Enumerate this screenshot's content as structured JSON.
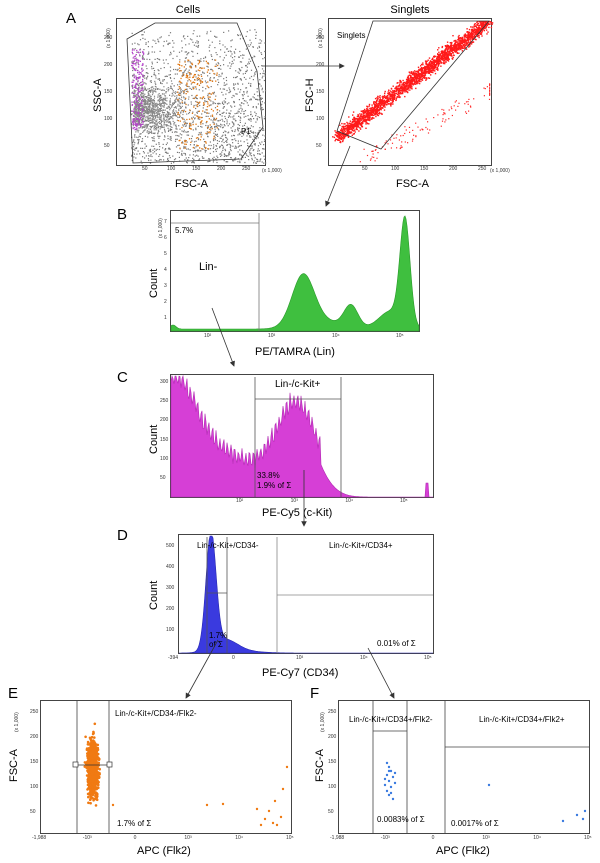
{
  "panels": {
    "A": {
      "letter": "A",
      "cells": {
        "title": "Cells",
        "xlabel": "FSC-A",
        "ylabel": "SSC-A",
        "x_scale": "(x 1,000)",
        "y_scale": "(x 1,000)",
        "x_ticks": [
          "50",
          "100",
          "150",
          "200",
          "250"
        ],
        "y_ticks": [
          "50",
          "100",
          "150",
          "200",
          "250"
        ],
        "gate": "P1"
      },
      "singlets": {
        "title": "Singlets",
        "xlabel": "FSC-A",
        "ylabel": "FSC-H",
        "x_scale": "(x 1,000)",
        "y_scale": "(x 1,000)",
        "x_ticks": [
          "50",
          "100",
          "150",
          "200",
          "250"
        ],
        "y_ticks": [
          "50",
          "100",
          "150",
          "200",
          "250"
        ],
        "gate": "Singlets"
      }
    },
    "B": {
      "letter": "B",
      "xlabel": "PE/TAMRA (Lin)",
      "ylabel": "Count",
      "y_scale": "(x 1,000)",
      "y_ticks": [
        "1",
        "2",
        "3",
        "4",
        "5",
        "6",
        "7"
      ],
      "x_ticks": [
        "10²",
        "10³",
        "10⁴",
        "10⁵"
      ],
      "gate": "Lin-",
      "pct": "5.7%",
      "color": "#3fbf3f"
    },
    "C": {
      "letter": "C",
      "xlabel": "PE-Cy5 (c-Kit)",
      "ylabel": "Count",
      "y_ticks": [
        "50",
        "100",
        "150",
        "200",
        "250",
        "300"
      ],
      "x_ticks": [
        "10²",
        "10³",
        "10⁴",
        "10⁵"
      ],
      "gate": "Lin-/c-Kit+",
      "pct": "33.8%",
      "of_total": "1.9% of Σ",
      "color": "#d63fd6"
    },
    "D": {
      "letter": "D",
      "xlabel": "PE-Cy7 (CD34)",
      "ylabel": "Count",
      "y_ticks": [
        "100",
        "200",
        "300",
        "400",
        "500"
      ],
      "x_ticks": [
        "-394",
        "0",
        "10³",
        "10⁴",
        "10⁵"
      ],
      "gate_left": "Lin-/c-Kit+/CD34-",
      "gate_right": "Lin-/c-Kit+/CD34+",
      "left_pct": "1.7%",
      "left_of_total": "of Σ",
      "right_of_total": "0.01% of Σ",
      "color": "#3a3adf"
    },
    "E": {
      "letter": "E",
      "xlabel": "APC (Flk2)",
      "ylabel": "FSC-A",
      "y_scale": "(x 1,000)",
      "y_ticks": [
        "50",
        "100",
        "150",
        "200",
        "250"
      ],
      "x_ticks": [
        "-1,988",
        "-10³",
        "0",
        "10³",
        "10⁴",
        "10⁵"
      ],
      "gate": "Lin-/c-Kit+/CD34-/Flk2-",
      "of_total": "1.7% of Σ",
      "color": "#f07a12"
    },
    "F": {
      "letter": "F",
      "xlabel": "APC (Flk2)",
      "ylabel": "FSC-A",
      "y_scale": "(x 1,000)",
      "y_ticks": [
        "50",
        "100",
        "150",
        "200",
        "250"
      ],
      "x_ticks": [
        "-1,988",
        "-10³",
        "0",
        "10³",
        "10⁴",
        "10⁵"
      ],
      "gate_left": "Lin-/c-Kit+/CD34+/Flk2-",
      "gate_right": "Lin-/c-Kit+/CD34+/Flk2+",
      "left_of_total": "0.0083% of Σ",
      "right_of_total": "0.0017% of Σ",
      "color": "#3a7ae0"
    }
  }
}
